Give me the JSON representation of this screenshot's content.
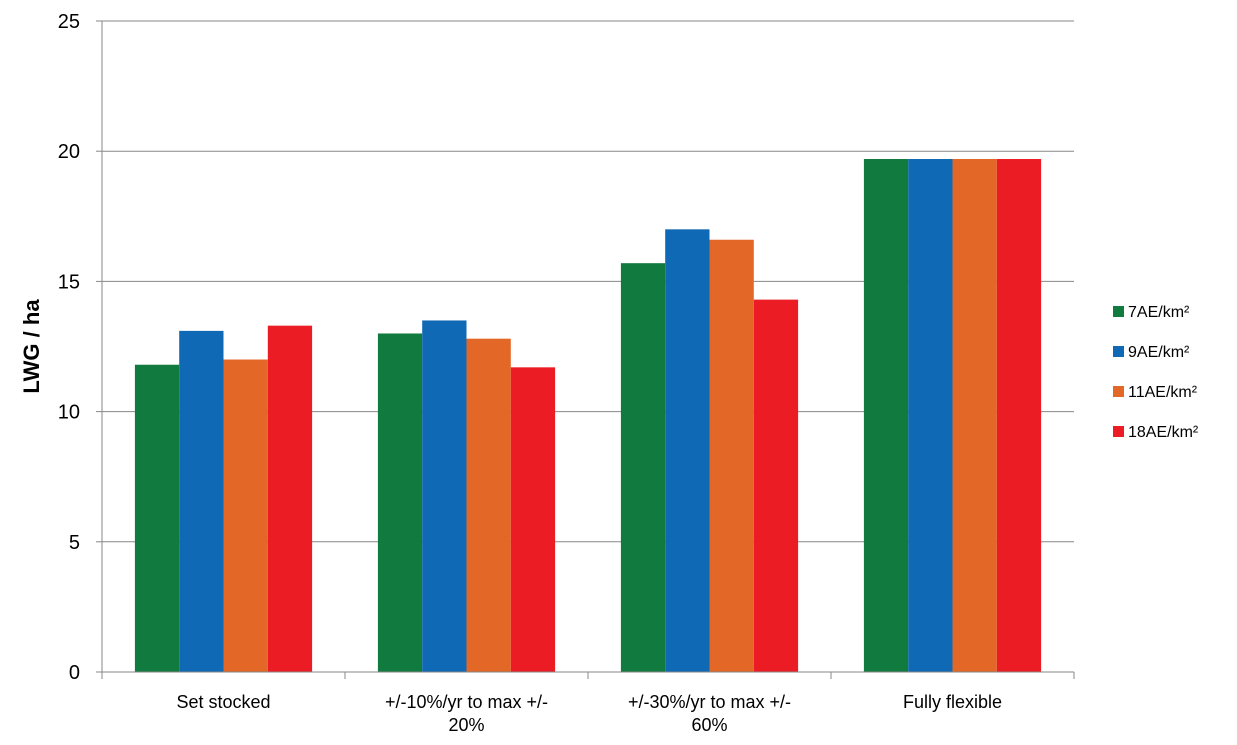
{
  "chart_data": {
    "type": "bar",
    "title": "",
    "xlabel": "",
    "ylabel": "LWG / ha",
    "ylim": [
      0,
      25
    ],
    "yticks": [
      0,
      5,
      10,
      15,
      20,
      25
    ],
    "grid": true,
    "legend_position": "right",
    "categories": [
      [
        "Set stocked"
      ],
      [
        "+/-10%/yr to max +/-",
        "20%"
      ],
      [
        "+/-30%/yr to max +/-",
        "60%"
      ],
      [
        "Fully flexible"
      ]
    ],
    "series": [
      {
        "name": "7AE/km²",
        "color": "#117a3f",
        "values": [
          11.8,
          13.0,
          15.7,
          19.7
        ]
      },
      {
        "name": "9AE/km²",
        "color": "#0f69b4",
        "values": [
          13.1,
          13.5,
          17.0,
          19.7
        ]
      },
      {
        "name": "11AE/km²",
        "color": "#e36726",
        "values": [
          12.0,
          12.8,
          16.6,
          19.7
        ]
      },
      {
        "name": "18AE/km²",
        "color": "#ec1c24",
        "values": [
          13.3,
          11.7,
          14.3,
          19.7
        ]
      }
    ]
  }
}
